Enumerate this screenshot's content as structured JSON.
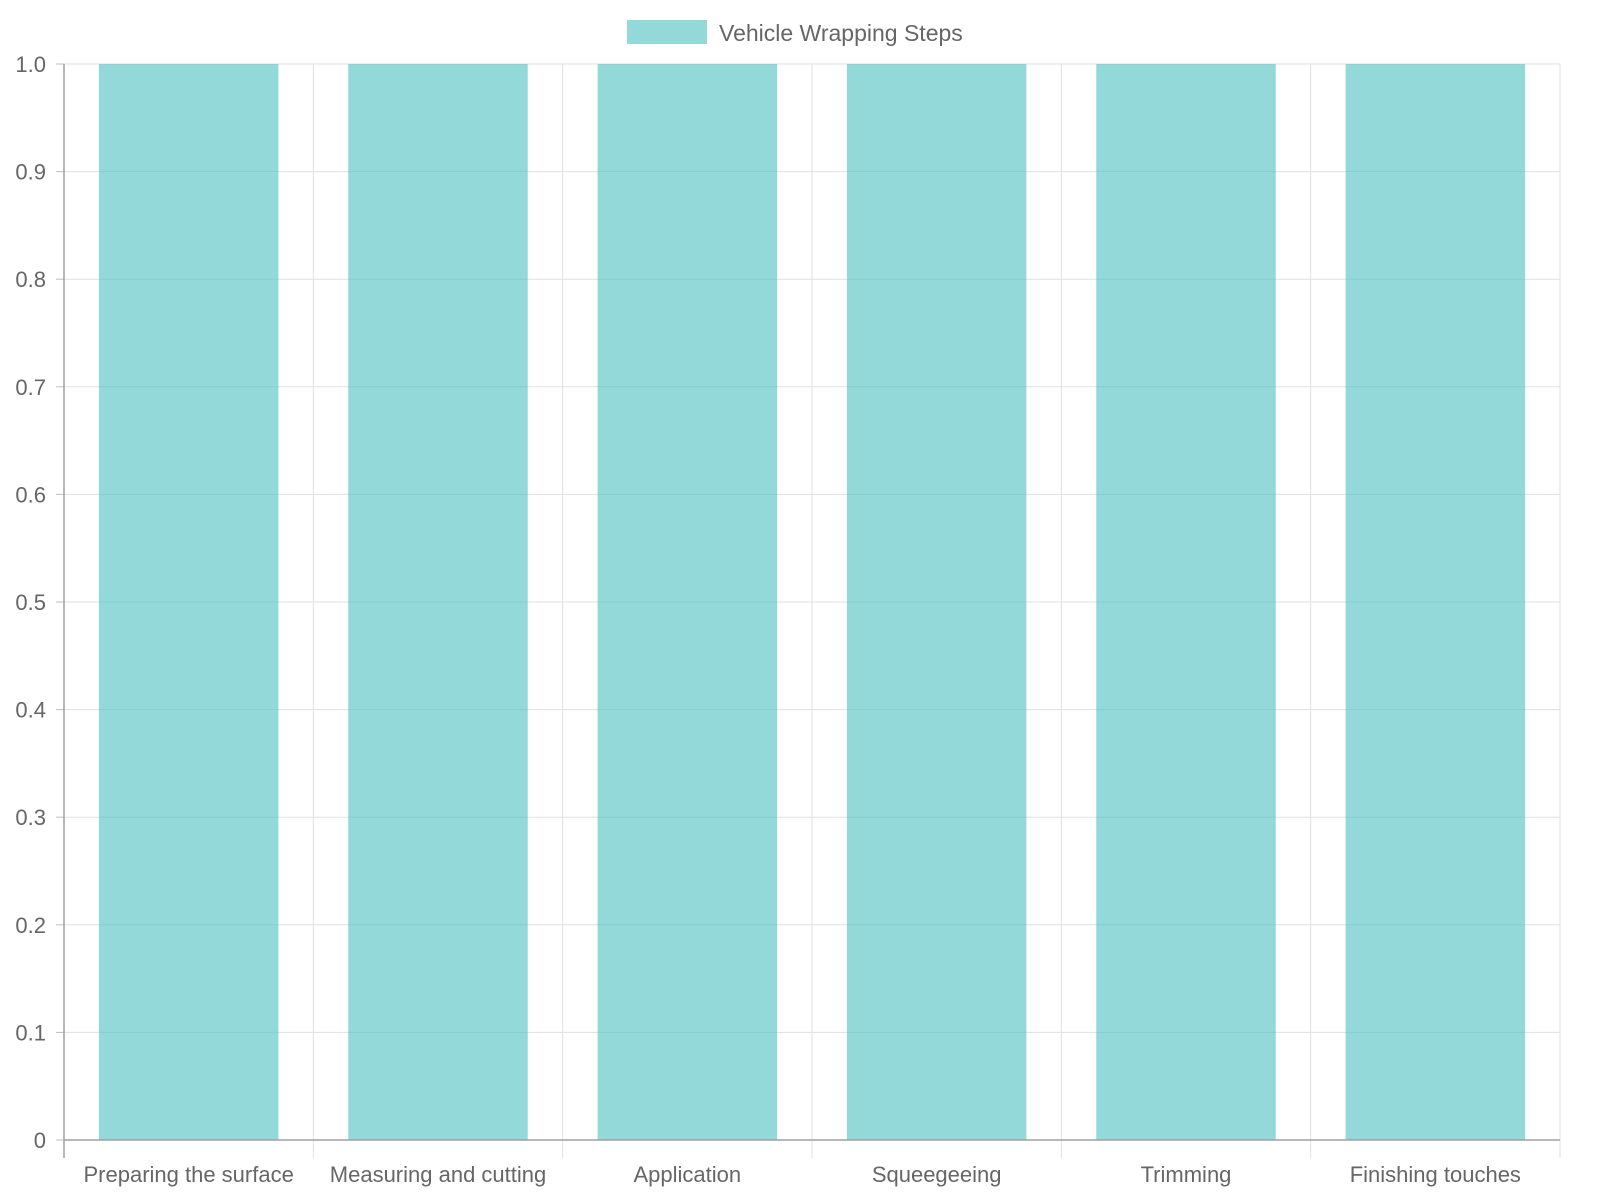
{
  "chart_data": {
    "type": "bar",
    "categories": [
      "Preparing the surface",
      "Measuring and cutting",
      "Application",
      "Squeegeeing",
      "Trimming",
      "Finishing touches"
    ],
    "series": [
      {
        "name": "Vehicle Wrapping Steps",
        "values": [
          1,
          1,
          1,
          1,
          1,
          1
        ],
        "color": "#4BC0C0"
      }
    ],
    "title": "",
    "xlabel": "",
    "ylabel": "",
    "ylim": [
      0,
      1.0
    ],
    "yticks": [
      "0",
      "0.1",
      "0.2",
      "0.3",
      "0.4",
      "0.5",
      "0.6",
      "0.7",
      "0.8",
      "0.9",
      "1.0"
    ],
    "grid": true,
    "legend": "top-center"
  }
}
